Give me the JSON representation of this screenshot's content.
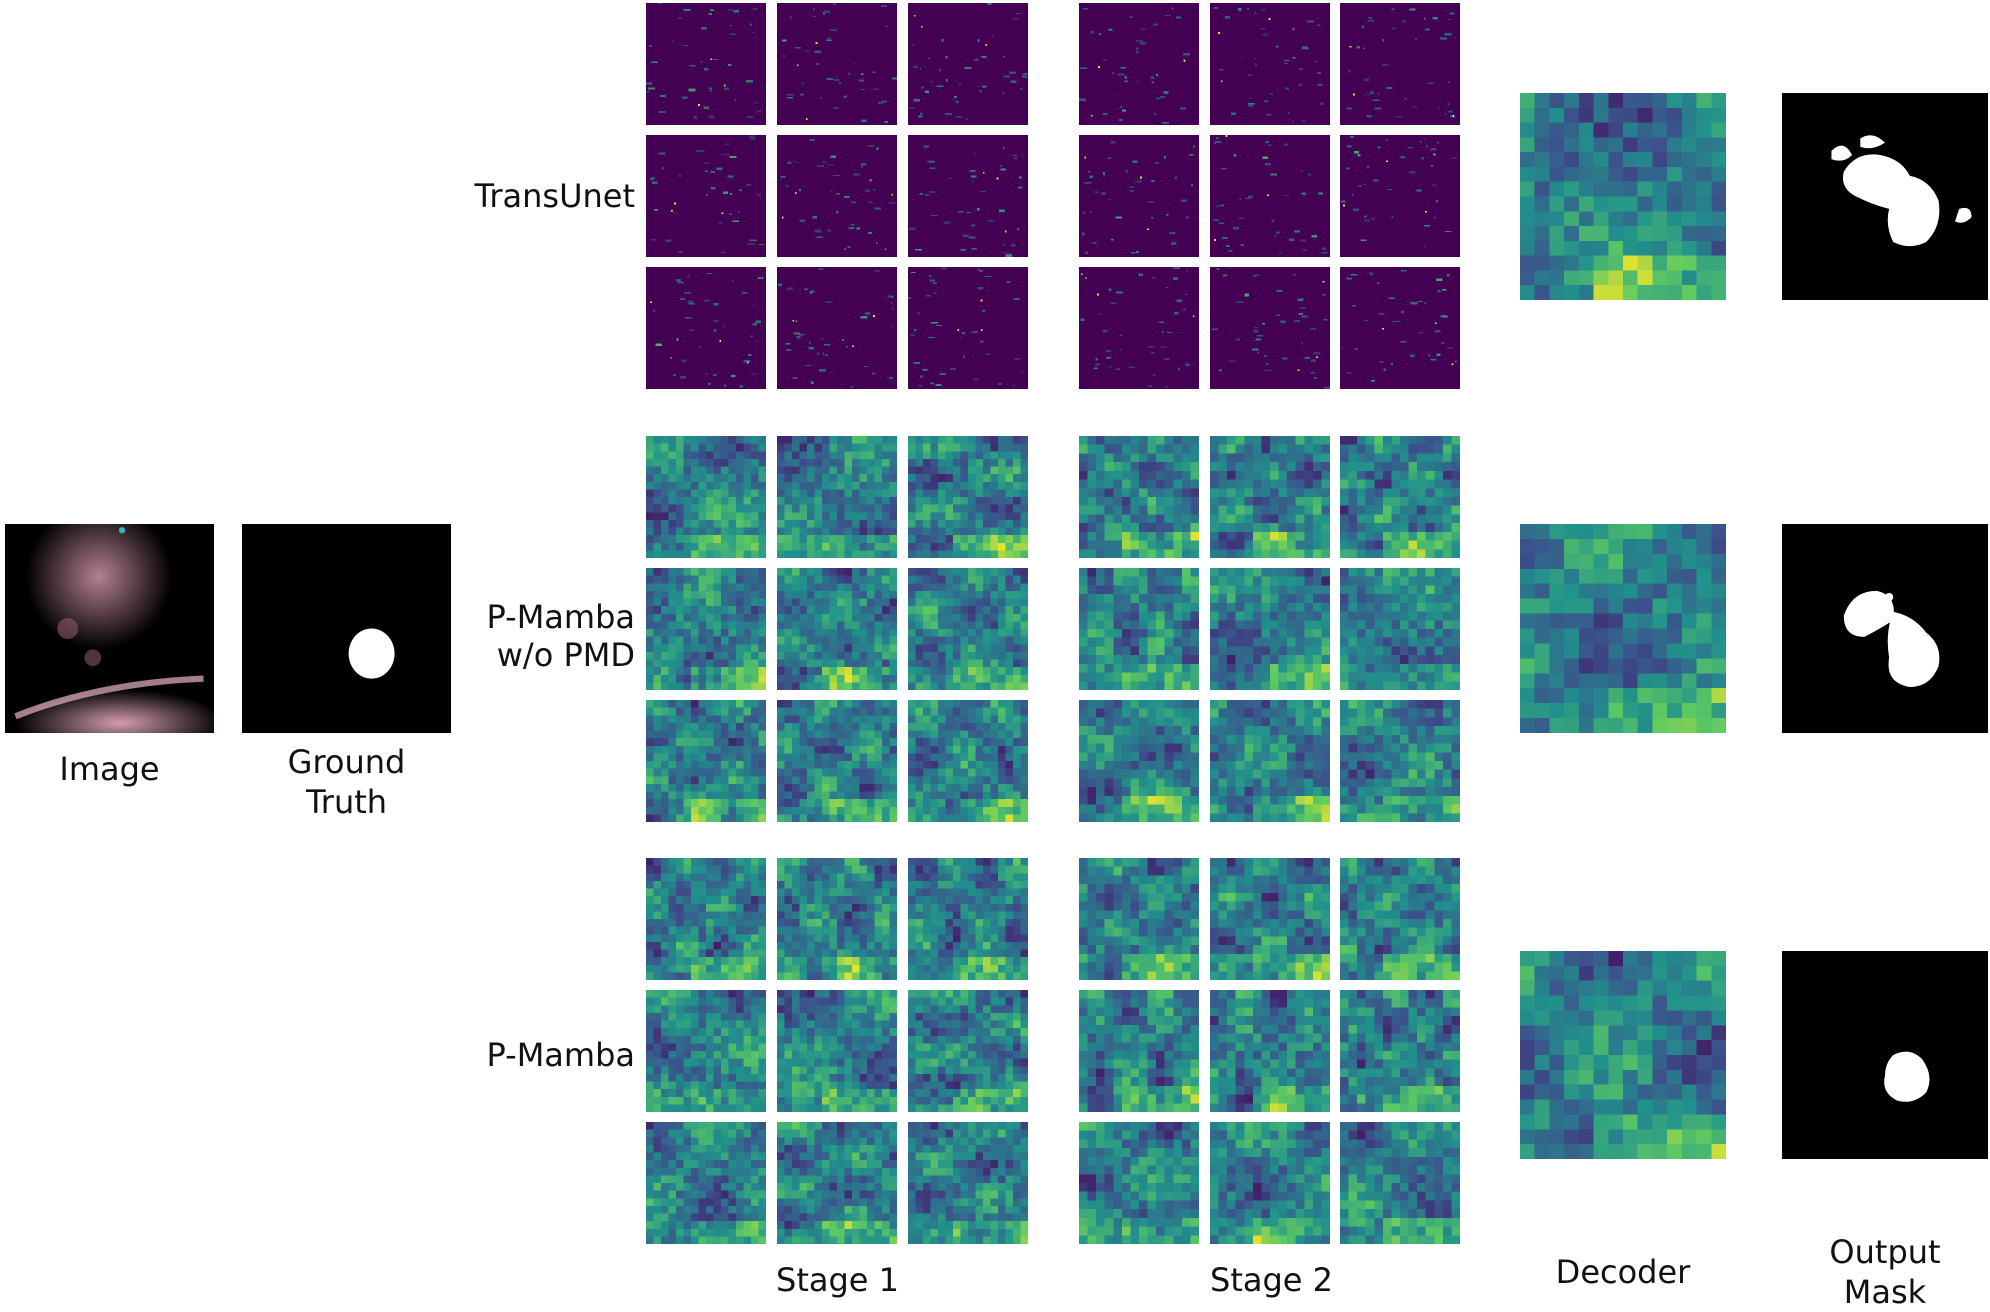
{
  "labels": {
    "image": "Image",
    "ground_truth_line1": "Ground",
    "ground_truth_line2": "Truth",
    "stage1": "Stage 1",
    "stage2": "Stage 2",
    "decoder": "Decoder",
    "output_line1": "Output",
    "output_line2": "Mask"
  },
  "rows": [
    {
      "name_line1": "TransUnet",
      "name_line2": "",
      "style": "sparse"
    },
    {
      "name_line1": "P-Mamba",
      "name_line2": "w/o PMD",
      "style": "dense"
    },
    {
      "name_line1": "P-Mamba",
      "name_line2": "",
      "style": "dense"
    }
  ],
  "colors": {
    "viridis_dark": "#440154",
    "viridis_mid": "#21918c",
    "viridis_bright": "#fde725",
    "mask_bg": "#000000",
    "mask_fg": "#ffffff",
    "echo_tint": "#d9a0b4"
  }
}
